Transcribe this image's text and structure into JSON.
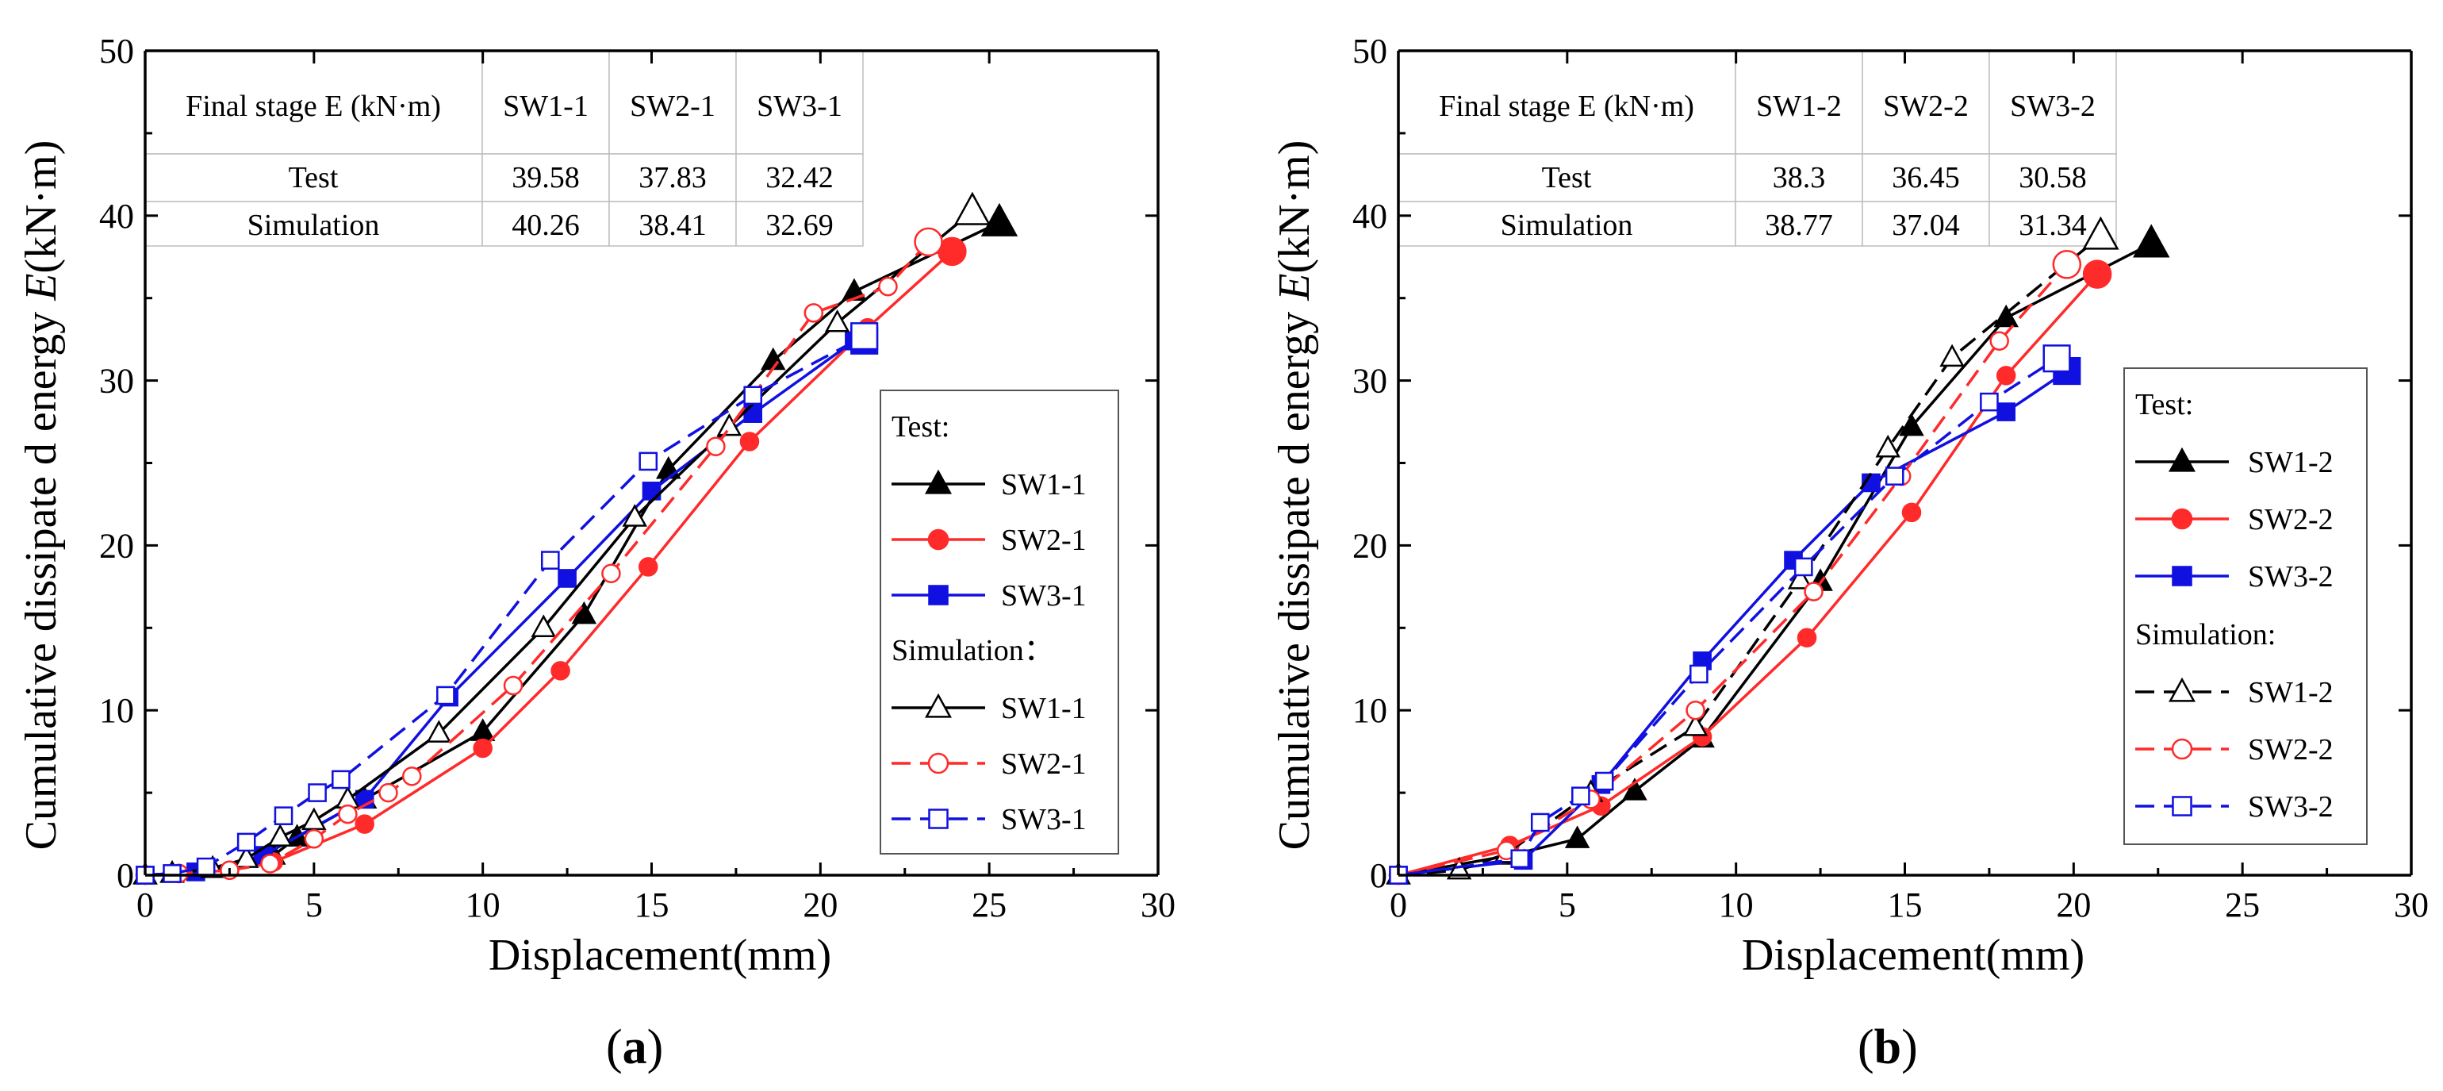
{
  "figure_labels": [
    {
      "open": "(",
      "letter": "a",
      "close": ")"
    },
    {
      "open": "(",
      "letter": "b",
      "close": ")"
    }
  ],
  "colors": {
    "SW1": "#000000",
    "SW2": "#ff2a2a",
    "SW3": "#1010e0"
  },
  "chart_data": [
    {
      "type": "line",
      "xlabel": "Displacement(mm)",
      "ylabel_parts": [
        "Cumulative dissipate d energy ",
        "E",
        "(kN·m)"
      ],
      "xlim": [
        0,
        30
      ],
      "ylim": [
        0,
        50
      ],
      "xticks": [
        "0",
        "5",
        "10",
        "15",
        "20",
        "25",
        "30"
      ],
      "yticks": [
        "0",
        "10",
        "20",
        "30",
        "40",
        "50"
      ],
      "table": {
        "header": [
          "Final stage E (kN·m)",
          "SW1-1",
          "SW2-1",
          "SW3-1"
        ],
        "rows": [
          [
            "Test",
            "39.58",
            "37.83",
            "32.42"
          ],
          [
            "Simulation",
            "40.26",
            "38.41",
            "32.69"
          ]
        ]
      },
      "legend": {
        "test_heading": "Test:",
        "sim_heading": "Simulation："
      },
      "series": [
        {
          "name": "SW1-1",
          "group": "test",
          "color": "#000000",
          "marker": "triangle",
          "filled": true,
          "dash": false,
          "x": [
            0,
            0.8,
            2,
            3.8,
            4.5,
            6.5,
            10,
            13,
            15.5,
            18.6,
            21,
            25.3
          ],
          "y": [
            0,
            0.1,
            0.4,
            1.2,
            2.3,
            4.6,
            8.7,
            15.8,
            24.6,
            31.2,
            35.4,
            39.58
          ]
        },
        {
          "name": "SW2-1",
          "group": "test",
          "color": "#ff2a2a",
          "marker": "circle",
          "filled": true,
          "dash": false,
          "x": [
            0,
            1,
            2.5,
            3.8,
            6.5,
            10,
            12.3,
            14.9,
            17.9,
            21.4,
            23.9
          ],
          "y": [
            0,
            0.1,
            0.3,
            0.8,
            3.1,
            7.7,
            12.4,
            18.7,
            26.3,
            33.2,
            37.83
          ]
        },
        {
          "name": "SW3-1",
          "group": "test",
          "color": "#1010e0",
          "marker": "square",
          "filled": true,
          "dash": false,
          "x": [
            0,
            1.5,
            3.5,
            6.5,
            9,
            12.5,
            15,
            18,
            21,
            21.3
          ],
          "y": [
            0,
            0.2,
            1.2,
            4.6,
            10.8,
            18,
            23.3,
            28,
            32.4,
            32.42
          ]
        },
        {
          "name": "SW1-1",
          "group": "sim",
          "color": "#000000",
          "marker": "triangle",
          "filled": false,
          "dash": false,
          "x": [
            0,
            0.8,
            2,
            3,
            4,
            5,
            6,
            8.7,
            11.8,
            14.5,
            17.3,
            20.5,
            24.5
          ],
          "y": [
            0,
            0.1,
            0.4,
            1,
            2.3,
            3.3,
            4.6,
            8.6,
            15,
            21.7,
            27.2,
            33.5,
            40.26
          ]
        },
        {
          "name": "SW2-1",
          "group": "sim",
          "color": "#ff2a2a",
          "marker": "circle",
          "filled": false,
          "dash": true,
          "x": [
            0,
            1,
            2.5,
            3.7,
            5,
            6,
            7.2,
            7.9,
            10.9,
            13.8,
            16.9,
            19.8,
            22,
            23.2
          ],
          "y": [
            0,
            0.1,
            0.3,
            0.7,
            2.2,
            3.7,
            5,
            6,
            11.5,
            18.3,
            26,
            34.1,
            35.7,
            38.41
          ]
        },
        {
          "name": "SW3-1",
          "group": "sim",
          "color": "#1010e0",
          "marker": "square",
          "filled": false,
          "dash": true,
          "x": [
            0,
            0.8,
            1.8,
            3,
            4.1,
            5.1,
            5.8,
            8.9,
            12,
            14.9,
            18,
            21.3
          ],
          "y": [
            0,
            0.1,
            0.5,
            2,
            3.6,
            5,
            5.8,
            10.9,
            19.1,
            25.1,
            29.1,
            32.69
          ]
        }
      ]
    },
    {
      "type": "line",
      "xlabel": "Displacement(mm)",
      "ylabel_parts": [
        "Cumulative dissipate d energy ",
        "E",
        "(kN·m)"
      ],
      "xlim": [
        0,
        30
      ],
      "ylim": [
        0,
        50
      ],
      "xticks": [
        "0",
        "5",
        "10",
        "15",
        "20",
        "25",
        "30"
      ],
      "yticks": [
        "0",
        "10",
        "20",
        "30",
        "40",
        "50"
      ],
      "table": {
        "header": [
          "Final stage E (kN·m)",
          "SW1-2",
          "SW2-2",
          "SW3-2"
        ],
        "rows": [
          [
            "Test",
            "38.3",
            "36.45",
            "30.58"
          ],
          [
            "Simulation",
            "38.77",
            "37.04",
            "31.34"
          ]
        ]
      },
      "legend": {
        "test_heading": "Test:",
        "sim_heading": "Simulation:"
      },
      "series": [
        {
          "name": "SW1-2",
          "group": "test",
          "color": "#000000",
          "marker": "triangle",
          "filled": true,
          "dash": false,
          "x": [
            0,
            3.3,
            5.3,
            7,
            9,
            12.5,
            15.2,
            18,
            22.3
          ],
          "y": [
            0,
            1.2,
            2.2,
            5.1,
            8.3,
            17.8,
            27.2,
            33.8,
            38.3
          ]
        },
        {
          "name": "SW2-2",
          "group": "test",
          "color": "#ff2a2a",
          "marker": "circle",
          "filled": true,
          "dash": false,
          "x": [
            0,
            3.3,
            6,
            9,
            12.1,
            15.2,
            18,
            20.7
          ],
          "y": [
            0,
            1.8,
            4.2,
            8.4,
            14.4,
            22,
            30.3,
            36.45
          ]
        },
        {
          "name": "SW3-2",
          "group": "test",
          "color": "#1010e0",
          "marker": "square",
          "filled": true,
          "dash": false,
          "x": [
            0,
            3.7,
            6,
            9,
            11.7,
            14,
            18,
            19.8
          ],
          "y": [
            0,
            0.9,
            5.5,
            13,
            19.1,
            23.8,
            28.1,
            30.58
          ]
        },
        {
          "name": "SW1-2",
          "group": "sim",
          "color": "#000000",
          "marker": "triangle",
          "filled": false,
          "dash": true,
          "x": [
            0,
            1.8,
            3.2,
            5.7,
            8.8,
            11.9,
            14.5,
            16.4,
            20.8
          ],
          "y": [
            0,
            0.3,
            1.3,
            5,
            9,
            17.9,
            25.9,
            31.4,
            38.77
          ]
        },
        {
          "name": "SW2-2",
          "group": "sim",
          "color": "#ff2a2a",
          "marker": "circle",
          "filled": false,
          "dash": true,
          "x": [
            0,
            3.2,
            5.7,
            8.8,
            12.3,
            14.9,
            17.8,
            19.8
          ],
          "y": [
            0,
            1.5,
            4.6,
            10,
            17.2,
            24.2,
            32.4,
            37.04
          ]
        },
        {
          "name": "SW3-2",
          "group": "sim",
          "color": "#1010e0",
          "marker": "square",
          "filled": false,
          "dash": true,
          "x": [
            0,
            3.6,
            4.2,
            5.4,
            6.1,
            8.9,
            12,
            14.7,
            17.5,
            19.5
          ],
          "y": [
            0,
            1,
            3.2,
            4.8,
            5.7,
            12.2,
            18.7,
            24.2,
            28.7,
            31.34
          ]
        }
      ]
    }
  ]
}
